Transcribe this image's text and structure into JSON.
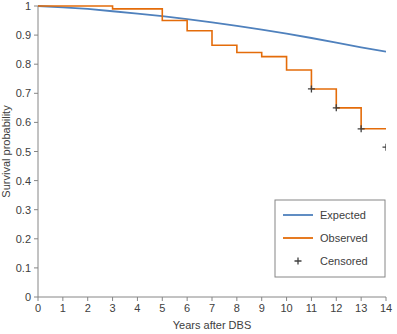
{
  "chart_data": {
    "type": "line",
    "x_label": "Years after DBS",
    "y_label": "Survival probability",
    "xlim": [
      0,
      14
    ],
    "ylim": [
      0,
      1
    ],
    "xticks": [
      0,
      1,
      2,
      3,
      4,
      5,
      6,
      7,
      8,
      9,
      10,
      11,
      12,
      13,
      14
    ],
    "yticks": [
      0,
      0.1,
      0.2,
      0.3,
      0.4,
      0.5,
      0.6,
      0.7,
      0.8,
      0.9,
      1
    ],
    "grid": false,
    "legend": "bottom-right",
    "series": [
      {
        "name": "Expected",
        "type": "line",
        "color": "#4f81bd",
        "x": [
          0,
          1,
          2,
          3,
          4,
          5,
          6,
          7,
          8,
          9,
          10,
          11,
          12,
          13,
          14
        ],
        "values": [
          1,
          0.995,
          0.99,
          0.982,
          0.974,
          0.965,
          0.955,
          0.944,
          0.932,
          0.919,
          0.905,
          0.89,
          0.874,
          0.858,
          0.843
        ]
      },
      {
        "name": "Observed",
        "type": "step",
        "color": "#e46c0a",
        "x": [
          0,
          3,
          5,
          6,
          7,
          8,
          9,
          10,
          11,
          12,
          13,
          14
        ],
        "values": [
          1,
          0.99,
          0.95,
          0.915,
          0.865,
          0.84,
          0.826,
          0.78,
          0.715,
          0.65,
          0.578,
          0.578
        ]
      },
      {
        "name": "Censored",
        "type": "scatter",
        "marker": "plus",
        "color": "#404040",
        "x": [
          11,
          12,
          13,
          14
        ],
        "values": [
          0.715,
          0.65,
          0.578,
          0.515
        ]
      }
    ]
  }
}
